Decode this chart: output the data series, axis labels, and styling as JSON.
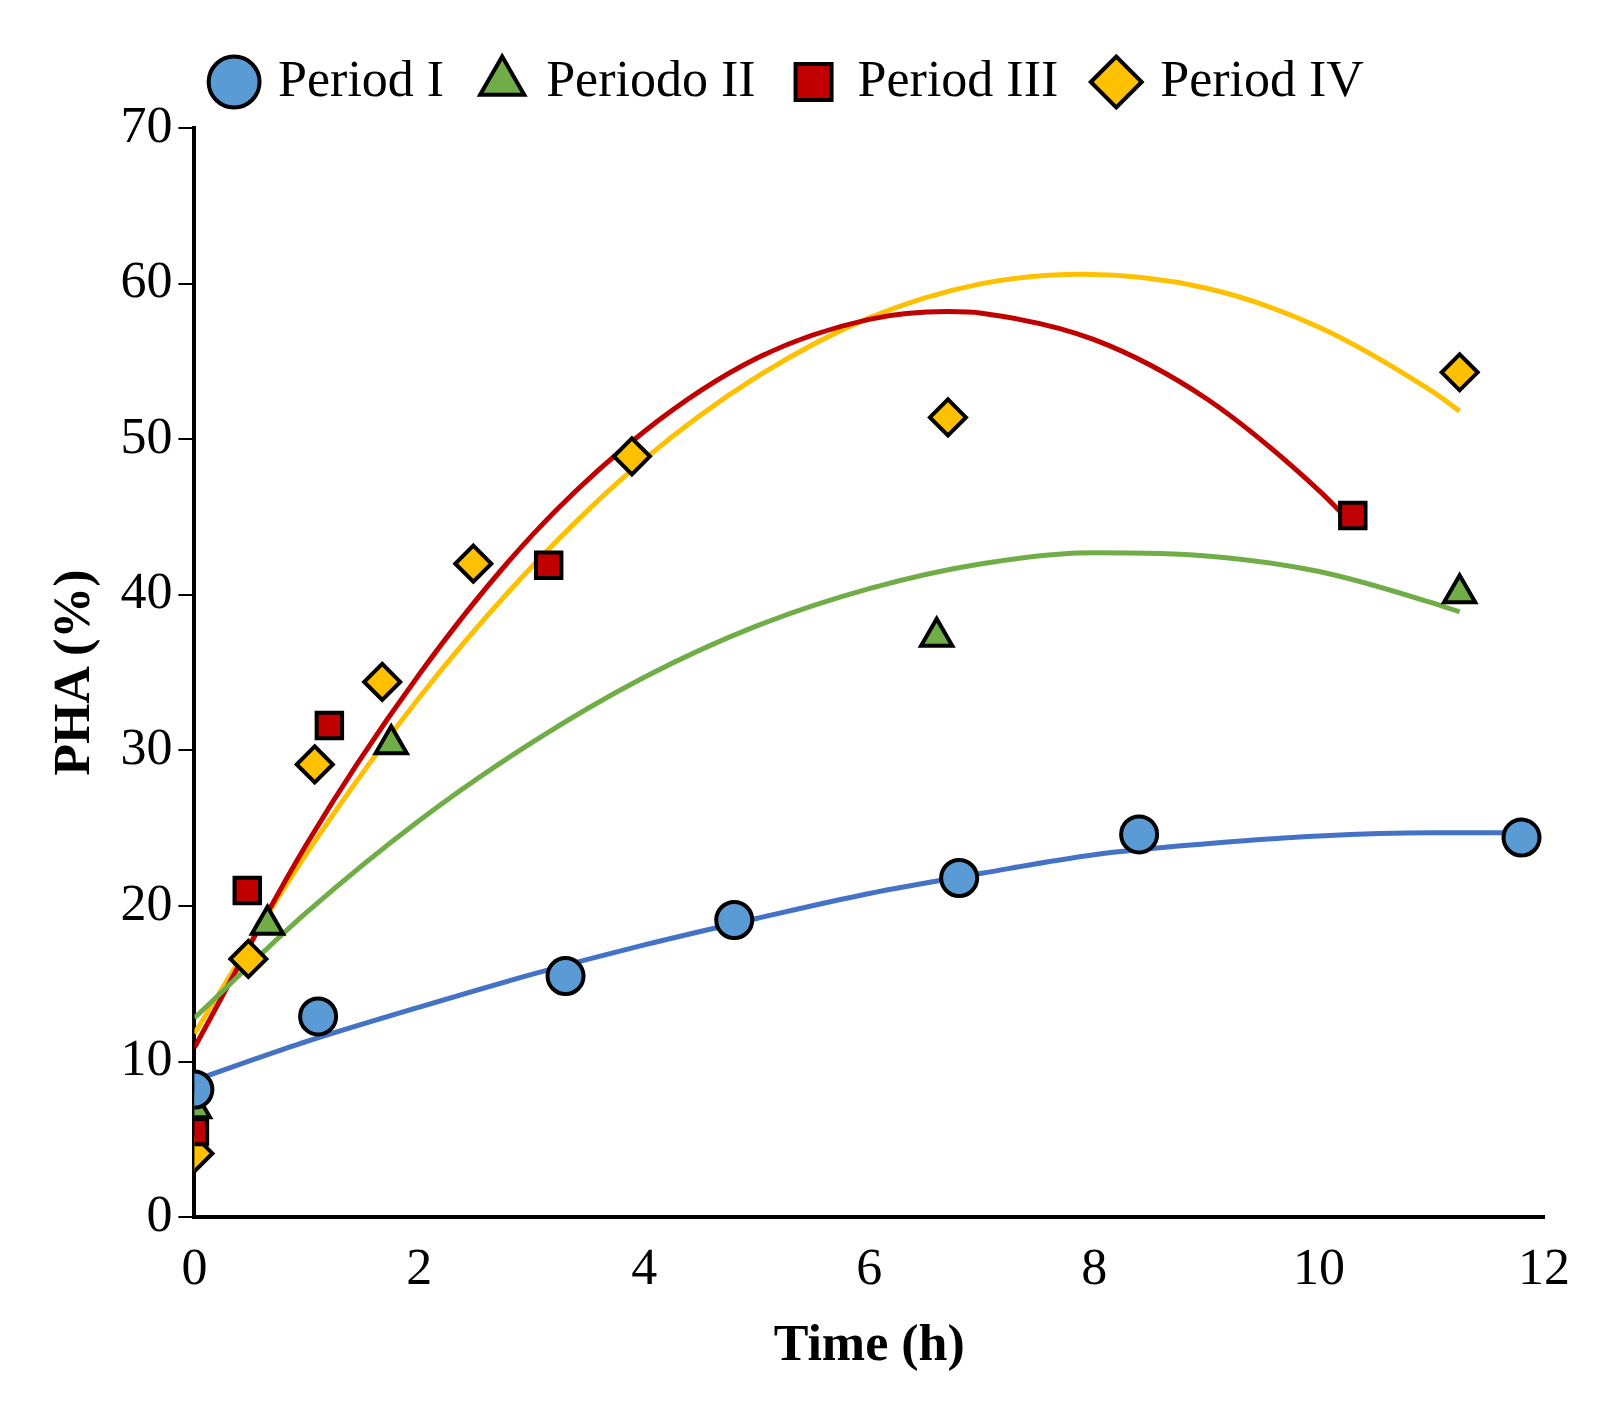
{
  "chart_data": {
    "type": "scatter",
    "xlabel": "Time (h)",
    "ylabel": "PHA (%)",
    "xlim": [
      0,
      12
    ],
    "xticks": [
      0,
      2,
      4,
      6,
      8,
      10,
      12
    ],
    "ylim": [
      0,
      70
    ],
    "yticks": [
      0,
      10,
      20,
      30,
      40,
      50,
      60,
      70
    ],
    "grid": false,
    "legend": "top",
    "series": [
      {
        "name": "Period I",
        "marker": "circle",
        "color": "#5b9bd5",
        "x": [
          0,
          1.1,
          3.3,
          4.8,
          6.8,
          8.4,
          11.8
        ],
        "values": [
          8.2,
          12.9,
          15.5,
          19.1,
          21.8,
          24.6,
          24.4
        ]
      },
      {
        "name": "Periodo II",
        "marker": "triangle",
        "color": "#70ad47",
        "x": [
          0,
          0.65,
          1.75,
          6.6,
          11.25
        ],
        "values": [
          7,
          18.8,
          30.4,
          37.3,
          40.1
        ]
      },
      {
        "name": "Period III",
        "marker": "square",
        "color": "#c00000",
        "x": [
          0,
          0.47,
          1.2,
          3.15,
          10.3
        ],
        "values": [
          5.5,
          21,
          31.6,
          41.9,
          45.1
        ]
      },
      {
        "name": "Period IV",
        "marker": "diamond",
        "color": "#ffc000",
        "x": [
          0,
          0.48,
          1.07,
          1.67,
          2.48,
          3.89,
          6.7,
          11.25
        ],
        "values": [
          4.1,
          16.6,
          29.1,
          34.4,
          42,
          48.9,
          51.4,
          54.3
        ]
      },
      {
        "type": "line",
        "marker": "none",
        "color": "#4472c4",
        "x": [
          0,
          1,
          2,
          3,
          4,
          5,
          6,
          7,
          8,
          9,
          10,
          11,
          11.8
        ],
        "values": [
          8.8,
          11.3,
          13.5,
          15.6,
          17.5,
          19.2,
          20.8,
          22.1,
          23.3,
          24,
          24.5,
          24.7,
          24.7
        ]
      },
      {
        "type": "line",
        "marker": "none",
        "color": "#70ad47",
        "x": [
          0,
          1,
          2,
          3,
          4,
          5,
          6,
          7,
          8,
          9,
          10,
          11,
          11.25
        ],
        "values": [
          12.8,
          19.6,
          25.5,
          30.5,
          34.7,
          38,
          40.4,
          42,
          42.7,
          42.5,
          41.5,
          39.5,
          38.9
        ]
      },
      {
        "type": "line",
        "marker": "none",
        "color": "#c00000",
        "x": [
          0,
          1,
          2,
          3,
          4,
          5,
          6,
          6.7,
          7,
          8,
          9,
          10,
          10.3
        ],
        "values": [
          10.9,
          24,
          34.9,
          43.8,
          50.5,
          55.2,
          57.7,
          58.2,
          58.1,
          56.4,
          52.6,
          46.7,
          44.5
        ]
      },
      {
        "type": "line",
        "marker": "none",
        "color": "#ffc000",
        "x": [
          0,
          1,
          2,
          3,
          4,
          5,
          6,
          7,
          7.9,
          9,
          10,
          11,
          11.25
        ],
        "values": [
          11.8,
          23.4,
          33.4,
          41.8,
          48.7,
          54,
          57.8,
          60,
          60.6,
          59.7,
          57.2,
          53.1,
          51.8
        ]
      }
    ]
  }
}
